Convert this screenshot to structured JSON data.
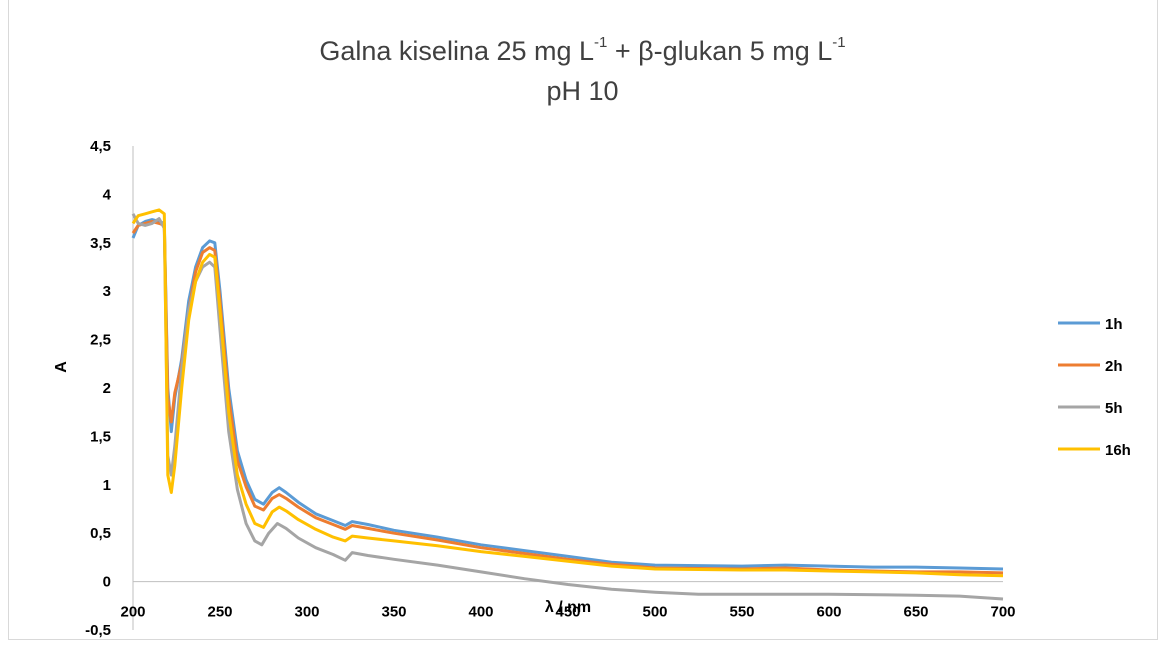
{
  "chart_data": {
    "type": "line",
    "title_line1": {
      "prefix": "Galna kiselina 25 mg L",
      "sup1": "-1",
      "middle": " + β-glukan 5 mg L",
      "sup2": "-1"
    },
    "title_line2": "pH 10",
    "xlabel": "λ / nm",
    "ylabel": "A",
    "xlim": [
      200,
      700
    ],
    "ylim": [
      -0.5,
      4.5
    ],
    "x_ticks": [
      "200",
      "250",
      "300",
      "350",
      "400",
      "450",
      "500",
      "550",
      "600",
      "650",
      "700"
    ],
    "y_ticks": [
      "-0,5",
      "0",
      "0,5",
      "1",
      "1,5",
      "2",
      "2,5",
      "3",
      "3,5",
      "4",
      "4,5"
    ],
    "grid": false,
    "legend_position": "right",
    "series": [
      {
        "name": "1h",
        "color": "#5b9bd5",
        "points": [
          [
            200,
            3.55
          ],
          [
            203,
            3.68
          ],
          [
            207,
            3.72
          ],
          [
            211,
            3.74
          ],
          [
            215,
            3.72
          ],
          [
            218,
            3.7
          ],
          [
            220,
            2.0
          ],
          [
            222,
            1.55
          ],
          [
            224,
            1.9
          ],
          [
            228,
            2.3
          ],
          [
            232,
            2.9
          ],
          [
            236,
            3.25
          ],
          [
            240,
            3.45
          ],
          [
            244,
            3.52
          ],
          [
            247,
            3.5
          ],
          [
            250,
            3.0
          ],
          [
            255,
            2.0
          ],
          [
            260,
            1.35
          ],
          [
            265,
            1.05
          ],
          [
            270,
            0.85
          ],
          [
            275,
            0.8
          ],
          [
            280,
            0.92
          ],
          [
            284,
            0.97
          ],
          [
            288,
            0.92
          ],
          [
            295,
            0.82
          ],
          [
            305,
            0.7
          ],
          [
            315,
            0.63
          ],
          [
            322,
            0.58
          ],
          [
            326,
            0.62
          ],
          [
            335,
            0.59
          ],
          [
            350,
            0.53
          ],
          [
            375,
            0.46
          ],
          [
            400,
            0.38
          ],
          [
            425,
            0.32
          ],
          [
            450,
            0.26
          ],
          [
            475,
            0.2
          ],
          [
            500,
            0.17
          ],
          [
            550,
            0.16
          ],
          [
            575,
            0.17
          ],
          [
            600,
            0.16
          ],
          [
            625,
            0.15
          ],
          [
            650,
            0.15
          ],
          [
            675,
            0.14
          ],
          [
            700,
            0.13
          ]
        ]
      },
      {
        "name": "2h",
        "color": "#ed7d31",
        "points": [
          [
            200,
            3.6
          ],
          [
            203,
            3.68
          ],
          [
            207,
            3.7
          ],
          [
            211,
            3.72
          ],
          [
            215,
            3.7
          ],
          [
            218,
            3.68
          ],
          [
            220,
            1.9
          ],
          [
            222,
            1.65
          ],
          [
            224,
            1.95
          ],
          [
            228,
            2.25
          ],
          [
            232,
            2.8
          ],
          [
            236,
            3.2
          ],
          [
            240,
            3.4
          ],
          [
            244,
            3.45
          ],
          [
            247,
            3.42
          ],
          [
            250,
            2.9
          ],
          [
            255,
            1.9
          ],
          [
            260,
            1.25
          ],
          [
            265,
            0.98
          ],
          [
            270,
            0.78
          ],
          [
            275,
            0.74
          ],
          [
            280,
            0.86
          ],
          [
            284,
            0.9
          ],
          [
            288,
            0.86
          ],
          [
            295,
            0.77
          ],
          [
            305,
            0.66
          ],
          [
            315,
            0.59
          ],
          [
            322,
            0.54
          ],
          [
            326,
            0.58
          ],
          [
            335,
            0.55
          ],
          [
            350,
            0.5
          ],
          [
            375,
            0.43
          ],
          [
            400,
            0.35
          ],
          [
            425,
            0.29
          ],
          [
            450,
            0.23
          ],
          [
            475,
            0.18
          ],
          [
            500,
            0.14
          ],
          [
            550,
            0.13
          ],
          [
            575,
            0.14
          ],
          [
            600,
            0.12
          ],
          [
            625,
            0.11
          ],
          [
            650,
            0.1
          ],
          [
            675,
            0.1
          ],
          [
            700,
            0.09
          ]
        ]
      },
      {
        "name": "5h",
        "color": "#a5a5a5",
        "points": [
          [
            200,
            3.8
          ],
          [
            203,
            3.7
          ],
          [
            207,
            3.68
          ],
          [
            211,
            3.7
          ],
          [
            215,
            3.75
          ],
          [
            218,
            3.65
          ],
          [
            220,
            1.3
          ],
          [
            222,
            1.1
          ],
          [
            224,
            1.4
          ],
          [
            228,
            2.2
          ],
          [
            232,
            2.8
          ],
          [
            236,
            3.1
          ],
          [
            240,
            3.25
          ],
          [
            244,
            3.3
          ],
          [
            247,
            3.25
          ],
          [
            250,
            2.6
          ],
          [
            255,
            1.55
          ],
          [
            260,
            0.95
          ],
          [
            265,
            0.6
          ],
          [
            270,
            0.42
          ],
          [
            274,
            0.38
          ],
          [
            278,
            0.5
          ],
          [
            283,
            0.6
          ],
          [
            288,
            0.55
          ],
          [
            295,
            0.45
          ],
          [
            305,
            0.35
          ],
          [
            315,
            0.28
          ],
          [
            322,
            0.22
          ],
          [
            326,
            0.3
          ],
          [
            335,
            0.27
          ],
          [
            350,
            0.23
          ],
          [
            375,
            0.17
          ],
          [
            400,
            0.1
          ],
          [
            425,
            0.03
          ],
          [
            450,
            -0.03
          ],
          [
            475,
            -0.08
          ],
          [
            500,
            -0.11
          ],
          [
            525,
            -0.13
          ],
          [
            550,
            -0.13
          ],
          [
            600,
            -0.13
          ],
          [
            650,
            -0.14
          ],
          [
            675,
            -0.15
          ],
          [
            700,
            -0.18
          ]
        ]
      },
      {
        "name": "16h",
        "color": "#ffc000",
        "points": [
          [
            200,
            3.7
          ],
          [
            203,
            3.78
          ],
          [
            207,
            3.8
          ],
          [
            211,
            3.82
          ],
          [
            215,
            3.84
          ],
          [
            218,
            3.8
          ],
          [
            220,
            1.1
          ],
          [
            222,
            0.92
          ],
          [
            224,
            1.2
          ],
          [
            228,
            2.0
          ],
          [
            232,
            2.7
          ],
          [
            236,
            3.1
          ],
          [
            240,
            3.3
          ],
          [
            244,
            3.38
          ],
          [
            247,
            3.35
          ],
          [
            250,
            2.8
          ],
          [
            255,
            1.75
          ],
          [
            260,
            1.1
          ],
          [
            265,
            0.8
          ],
          [
            270,
            0.6
          ],
          [
            275,
            0.56
          ],
          [
            280,
            0.72
          ],
          [
            284,
            0.77
          ],
          [
            288,
            0.73
          ],
          [
            295,
            0.64
          ],
          [
            305,
            0.54
          ],
          [
            315,
            0.46
          ],
          [
            322,
            0.42
          ],
          [
            326,
            0.47
          ],
          [
            335,
            0.45
          ],
          [
            350,
            0.42
          ],
          [
            375,
            0.37
          ],
          [
            400,
            0.31
          ],
          [
            425,
            0.26
          ],
          [
            450,
            0.21
          ],
          [
            475,
            0.16
          ],
          [
            500,
            0.13
          ],
          [
            550,
            0.12
          ],
          [
            575,
            0.12
          ],
          [
            600,
            0.11
          ],
          [
            625,
            0.1
          ],
          [
            650,
            0.09
          ],
          [
            675,
            0.07
          ],
          [
            700,
            0.06
          ]
        ]
      }
    ]
  }
}
